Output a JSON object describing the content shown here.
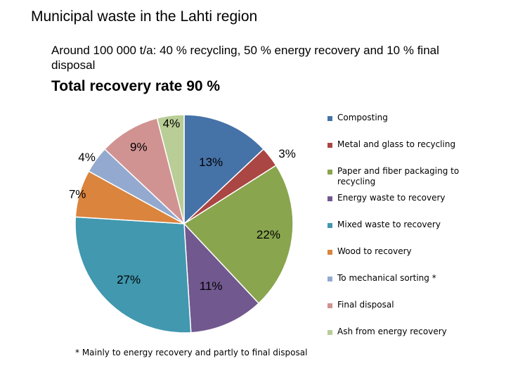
{
  "title": "Municipal waste in the Lahti region",
  "subtitle": "Around 100 000 t/a: 40 % recycling, 50 % energy recovery and 10 % final disposal",
  "headline": "Total recovery rate 90 %",
  "footnote": "* Mainly to energy recovery and partly to final disposal",
  "chart_data": {
    "type": "pie",
    "title": "Municipal waste in the Lahti region",
    "categories": [
      "Composting",
      "Metal and glass to recycling",
      "Paper and fiber packaging to recycling",
      "Energy waste to recovery",
      "Mixed waste to recovery",
      "Wood to recovery",
      "To mechanical sorting *",
      "Final disposal",
      "Ash from energy recovery"
    ],
    "values": [
      13,
      3,
      22,
      11,
      27,
      7,
      4,
      9,
      4
    ],
    "labels": [
      "13%",
      "3%",
      "22%",
      "11%",
      "27%",
      "7%",
      "4%",
      "9%",
      "4%"
    ],
    "colors": [
      "#4572A7",
      "#AA4643",
      "#89A54E",
      "#71588F",
      "#4198AF",
      "#DB843D",
      "#93A9CF",
      "#D19392",
      "#B9CD96"
    ],
    "legend_position": "right"
  }
}
